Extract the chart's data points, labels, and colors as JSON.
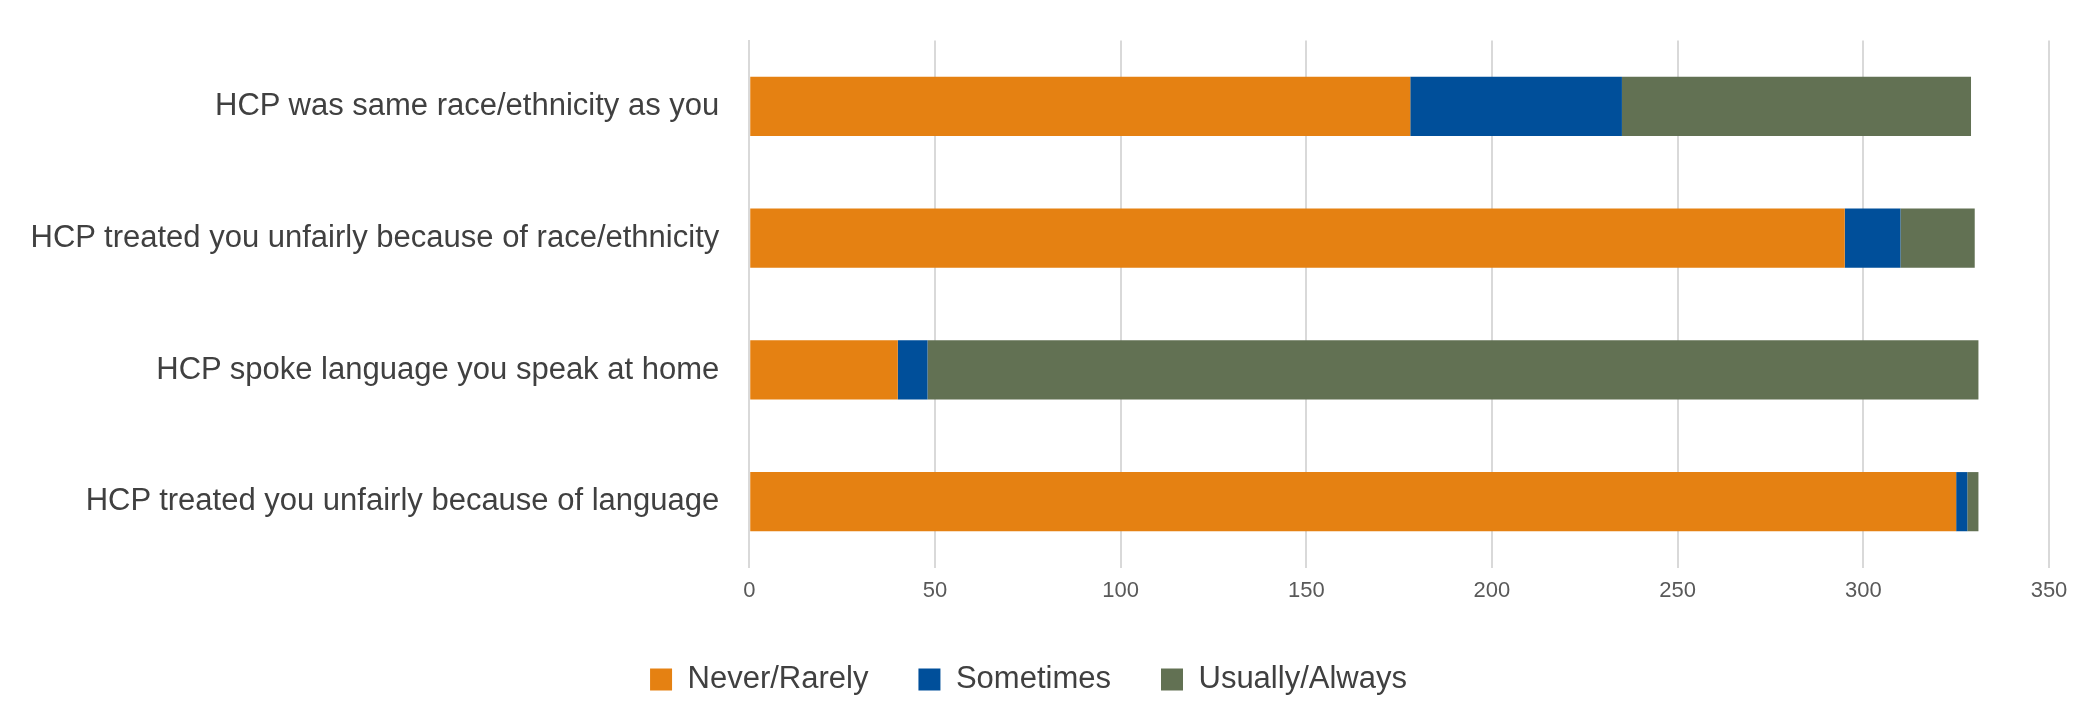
{
  "chart_data": {
    "type": "bar",
    "orientation": "horizontal",
    "stacked": true,
    "categories": [
      "HCP was same race/ethnicity as you",
      "HCP treated you unfairly because of race/ethnicity",
      "HCP spoke language you speak at home",
      "HCP treated you unfairly because of language"
    ],
    "series": [
      {
        "name": "Never/Rarely",
        "color": "#e58112",
        "values": [
          178,
          295,
          40,
          325
        ]
      },
      {
        "name": "Sometimes",
        "color": "#004f9a",
        "values": [
          57,
          15,
          8,
          3
        ]
      },
      {
        "name": "Usually/Always",
        "color": "#627153",
        "values": [
          94,
          20,
          283,
          3
        ]
      }
    ],
    "xlim": [
      0,
      350
    ],
    "xticks": [
      0,
      50,
      100,
      150,
      200,
      250,
      300,
      350
    ],
    "grid": "x",
    "legend": "bottom"
  }
}
